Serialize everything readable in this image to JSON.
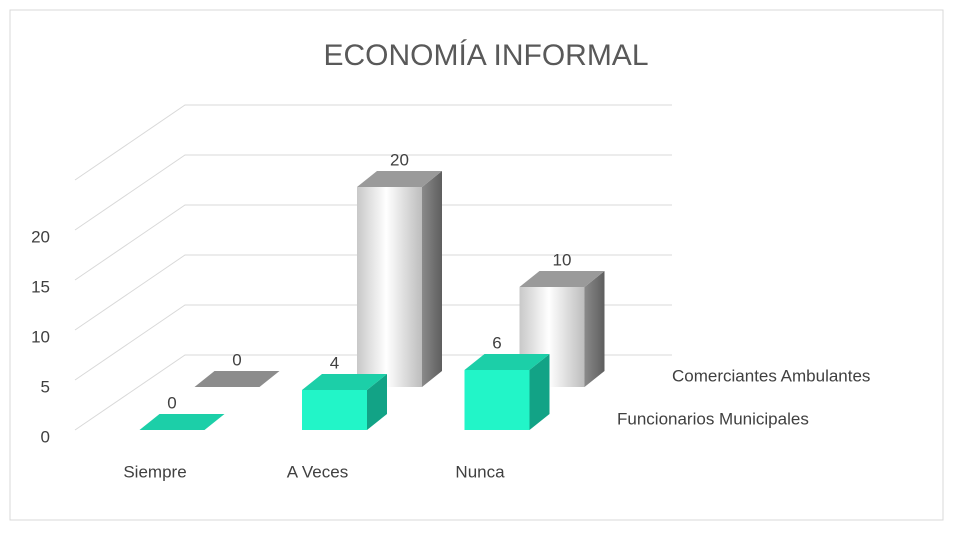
{
  "chart_data": {
    "type": "bar3d",
    "title": "ECONOMÍA INFORMAL",
    "categories": [
      "Siempre",
      "A Veces",
      "Nunca"
    ],
    "series": [
      {
        "name": "Funcionarios Municipales",
        "color": "#22f5c8",
        "values": [
          0,
          4,
          6
        ]
      },
      {
        "name": "Comerciantes Ambulantes",
        "color": "#d9d9d9",
        "values": [
          0,
          20,
          10
        ]
      }
    ],
    "ylim": [
      0,
      25
    ],
    "yticks": [
      0,
      5,
      10,
      15,
      20
    ],
    "grid": true
  }
}
